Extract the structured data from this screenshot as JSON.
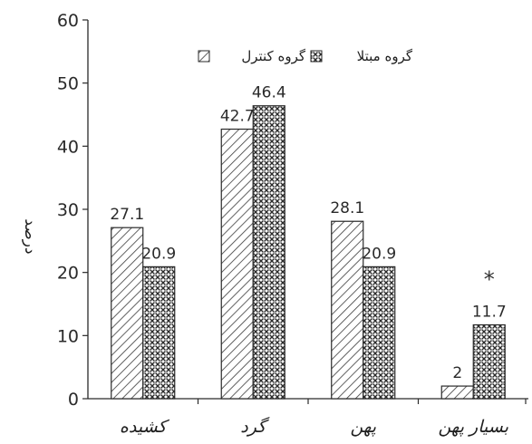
{
  "chart_data": {
    "type": "bar",
    "categories": [
      "کشیده",
      "گرد",
      "پهن",
      "بسیار پهن"
    ],
    "series": [
      {
        "name": "گروه کنترل",
        "values": [
          27.1,
          42.7,
          28.1,
          2
        ],
        "labels": [
          "27.1",
          "42.7",
          "28.1",
          "2"
        ],
        "pattern": "diagonal-hatch"
      },
      {
        "name": "گروه مبتلا",
        "values": [
          20.9,
          46.4,
          20.9,
          11.7
        ],
        "labels": [
          "20.9",
          "46.4",
          "20.9",
          "11.7"
        ],
        "pattern": "cross-hatch"
      }
    ],
    "ylabel": "درصد",
    "xlabel": "",
    "title": "",
    "ylim": [
      0,
      60
    ],
    "yticks": [
      0,
      10,
      20,
      30,
      40,
      50,
      60
    ],
    "ytick_labels": [
      "0",
      "10",
      "20",
      "30",
      "40",
      "50",
      "60"
    ],
    "legend_position": "top-right",
    "annotation": {
      "text": "*",
      "category_index": 3,
      "series_index": 1
    },
    "grid": false,
    "colors": {
      "ink": "#2a2a2a",
      "fill": "#ffffff"
    }
  }
}
